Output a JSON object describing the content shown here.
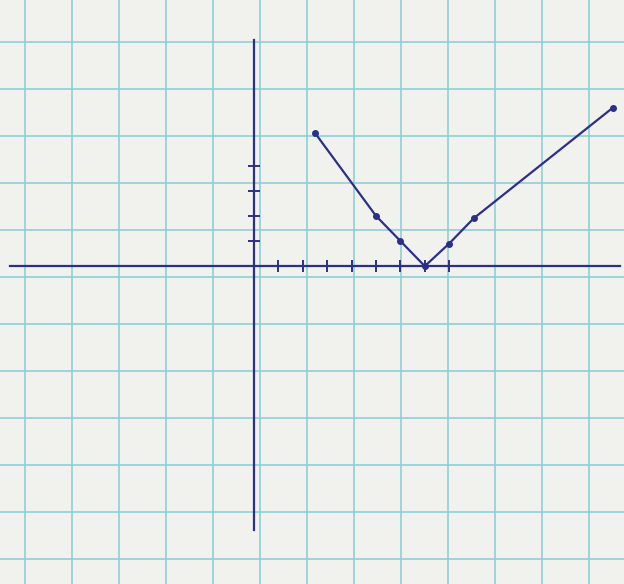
{
  "chart_data": {
    "type": "line",
    "x": [
      2.5,
      5,
      6,
      7,
      8,
      9,
      14.7
    ],
    "series": [
      {
        "values": [
          5.3,
          2,
          1,
          0,
          0.9,
          1.9,
          6.3
        ],
        "color": "#2b2f8a",
        "marker": "o",
        "line_style": "solid"
      }
    ],
    "xlim": [
      -10,
      15
    ],
    "ylim": [
      -10.5,
      9
    ],
    "xticks": [
      1,
      2,
      3,
      4,
      5,
      6,
      7,
      8
    ],
    "yticks": [
      1,
      2,
      3,
      4
    ],
    "tick_labels": false
  }
}
